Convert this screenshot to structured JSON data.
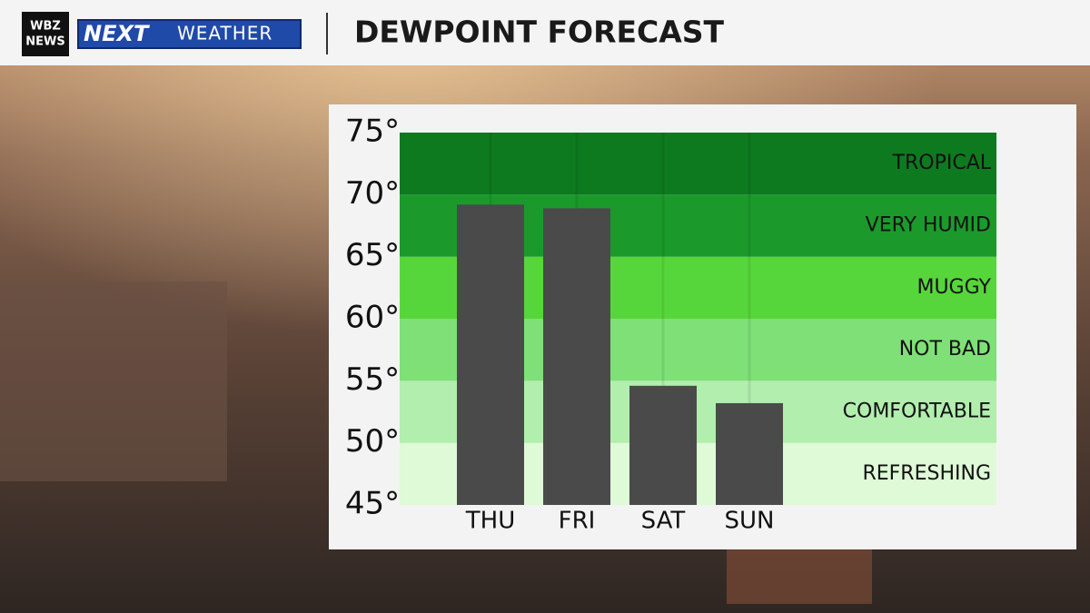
{
  "header": {
    "logo_top": "WBZ",
    "logo_bottom": "NEWS",
    "brand": "NEXT",
    "brand_sub": "WEATHER"
  },
  "chart_data": {
    "type": "bar",
    "title": "DEWPOINT FORECAST",
    "categories": [
      "THU",
      "FRI",
      "SAT",
      "SUN"
    ],
    "values": [
      69.2,
      68.9,
      54.6,
      53.2
    ],
    "color": "#4a4a4a",
    "ylim": [
      45,
      75
    ],
    "yticks": [
      {
        "value": 45,
        "label": "45°"
      },
      {
        "value": 50,
        "label": "50°"
      },
      {
        "value": 55,
        "label": "55°"
      },
      {
        "value": 60,
        "label": "60°"
      },
      {
        "value": 65,
        "label": "65°"
      },
      {
        "value": 70,
        "label": "70°"
      },
      {
        "value": 75,
        "label": "75°"
      }
    ],
    "bands": [
      {
        "label": "REFRESHING",
        "from": 45,
        "to": 50,
        "color": "#dffad6"
      },
      {
        "label": "COMFORTABLE",
        "from": 50,
        "to": 55,
        "color": "#b2eeae"
      },
      {
        "label": "NOT BAD",
        "from": 55,
        "to": 60,
        "color": "#7fe077"
      },
      {
        "label": "MUGGY",
        "from": 60,
        "to": 65,
        "color": "#57d63b"
      },
      {
        "label": "VERY HUMID",
        "from": 65,
        "to": 70,
        "color": "#1b9a2b"
      },
      {
        "label": "TROPICAL",
        "from": 70,
        "to": 75,
        "color": "#0e7a1f"
      }
    ]
  }
}
